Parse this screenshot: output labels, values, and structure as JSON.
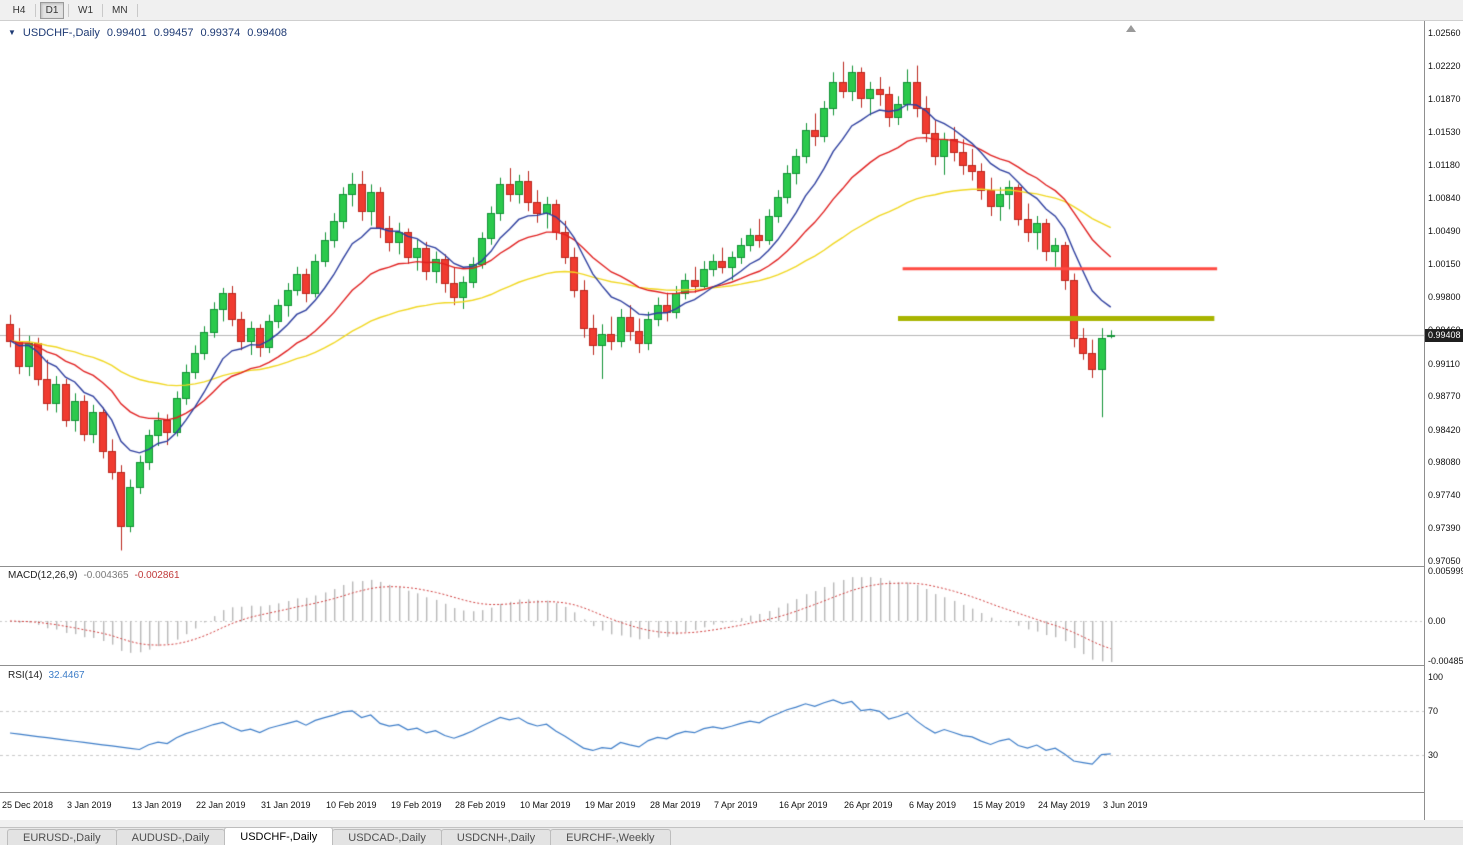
{
  "toolbar": {
    "timeframes": [
      {
        "label": "H4",
        "active": false
      },
      {
        "label": "D1",
        "active": true
      },
      {
        "label": "W1",
        "active": false
      },
      {
        "label": "MN",
        "active": false
      }
    ]
  },
  "chart": {
    "title": {
      "symbol": "USDCHF-,Daily",
      "open": "0.99401",
      "high": "0.99457",
      "low": "0.99374",
      "close": "0.99408"
    }
  },
  "chart_data": {
    "type": "candlestick",
    "symbol": "USDCHF",
    "timeframe": "Daily",
    "background": "#ffffff",
    "candle_colors": {
      "up": {
        "fill": "#2bc94c",
        "stroke": "#129336"
      },
      "down": {
        "fill": "#f03b30",
        "stroke": "#bb271e"
      }
    },
    "price_axis": {
      "min": 0.9705,
      "max": 1.0256,
      "labels": [
        "1.02560",
        "1.02220",
        "1.01870",
        "1.01530",
        "1.01180",
        "1.00840",
        "1.00490",
        "1.00150",
        "0.99800",
        "0.99460",
        "0.99110",
        "0.98770",
        "0.98420",
        "0.98080",
        "0.97740",
        "0.97390",
        "0.97050"
      ],
      "current_price": 0.99408,
      "current_price_label": "0.99408",
      "current_line_color": "#b6b6b6"
    },
    "x_labels": [
      {
        "i": 0,
        "text": "25 Dec 2018"
      },
      {
        "i": 7,
        "text": "3 Jan 2019"
      },
      {
        "i": 14,
        "text": "13 Jan 2019"
      },
      {
        "i": 21,
        "text": "22 Jan 2019"
      },
      {
        "i": 28,
        "text": "31 Jan 2019"
      },
      {
        "i": 35,
        "text": "10 Feb 2019"
      },
      {
        "i": 42,
        "text": "19 Feb 2019"
      },
      {
        "i": 49,
        "text": "28 Feb 2019"
      },
      {
        "i": 56,
        "text": "10 Mar 2019"
      },
      {
        "i": 63,
        "text": "19 Mar 2019"
      },
      {
        "i": 70,
        "text": "28 Mar 2019"
      },
      {
        "i": 77,
        "text": "7 Apr 2019"
      },
      {
        "i": 84,
        "text": "16 Apr 2019"
      },
      {
        "i": 91,
        "text": "26 Apr 2019"
      },
      {
        "i": 98,
        "text": "6 May 2019"
      },
      {
        "i": 105,
        "text": "15 May 2019"
      },
      {
        "i": 112,
        "text": "24 May 2019"
      },
      {
        "i": 119,
        "text": "3 Jun 2019"
      }
    ],
    "candles": [
      [
        0.9952,
        0.9962,
        0.9928,
        0.9935
      ],
      [
        0.9935,
        0.9948,
        0.99,
        0.9908
      ],
      [
        0.9908,
        0.994,
        0.9898,
        0.9932
      ],
      [
        0.9932,
        0.9938,
        0.9888,
        0.9895
      ],
      [
        0.9895,
        0.9915,
        0.9862,
        0.987
      ],
      [
        0.987,
        0.9898,
        0.986,
        0.989
      ],
      [
        0.989,
        0.9895,
        0.9845,
        0.9852
      ],
      [
        0.9852,
        0.988,
        0.984,
        0.9872
      ],
      [
        0.9872,
        0.9878,
        0.983,
        0.9838
      ],
      [
        0.9838,
        0.9868,
        0.9828,
        0.986
      ],
      [
        0.986,
        0.9865,
        0.9812,
        0.982
      ],
      [
        0.982,
        0.9832,
        0.979,
        0.9798
      ],
      [
        0.9798,
        0.9805,
        0.9716,
        0.9742
      ],
      [
        0.9742,
        0.979,
        0.9735,
        0.9782
      ],
      [
        0.9782,
        0.9815,
        0.9775,
        0.9808
      ],
      [
        0.9808,
        0.9842,
        0.98,
        0.9836
      ],
      [
        0.9836,
        0.986,
        0.9825,
        0.9852
      ],
      [
        0.9852,
        0.9858,
        0.9826,
        0.984
      ],
      [
        0.984,
        0.9882,
        0.9835,
        0.9875
      ],
      [
        0.9875,
        0.991,
        0.9868,
        0.9902
      ],
      [
        0.9902,
        0.993,
        0.9895,
        0.9922
      ],
      [
        0.9922,
        0.995,
        0.9915,
        0.9944
      ],
      [
        0.9944,
        0.9975,
        0.9938,
        0.9968
      ],
      [
        0.9968,
        0.999,
        0.9955,
        0.9985
      ],
      [
        0.9985,
        0.9992,
        0.995,
        0.9958
      ],
      [
        0.9958,
        0.9965,
        0.9925,
        0.9935
      ],
      [
        0.9935,
        0.9955,
        0.992,
        0.9948
      ],
      [
        0.9948,
        0.9952,
        0.9918,
        0.9928
      ],
      [
        0.9928,
        0.9962,
        0.9922,
        0.9955
      ],
      [
        0.9955,
        0.9978,
        0.9948,
        0.9972
      ],
      [
        0.9972,
        0.9995,
        0.996,
        0.9988
      ],
      [
        0.9988,
        1.0012,
        0.9982,
        1.0005
      ],
      [
        1.0005,
        1.001,
        0.9975,
        0.9985
      ],
      [
        0.9985,
        1.0025,
        0.998,
        1.0018
      ],
      [
        1.0018,
        1.0048,
        1.0012,
        1.004
      ],
      [
        1.004,
        1.0068,
        1.0032,
        1.006
      ],
      [
        1.006,
        1.0095,
        1.0052,
        1.0088
      ],
      [
        1.0088,
        1.011,
        1.0075,
        1.0098
      ],
      [
        1.0098,
        1.0112,
        1.006,
        1.007
      ],
      [
        1.007,
        1.0098,
        1.0055,
        1.009
      ],
      [
        1.009,
        1.0095,
        1.0042,
        1.0052
      ],
      [
        1.0052,
        1.0065,
        1.0028,
        1.0038
      ],
      [
        1.0038,
        1.0058,
        1.0025,
        1.0048
      ],
      [
        1.0048,
        1.0052,
        1.0015,
        1.0022
      ],
      [
        1.0022,
        1.004,
        1.0008,
        1.0032
      ],
      [
        1.0032,
        1.0038,
        0.9998,
        1.0008
      ],
      [
        1.0008,
        1.0028,
        0.9995,
        1.002
      ],
      [
        1.002,
        1.0025,
        0.9985,
        0.9995
      ],
      [
        0.9995,
        1.0012,
        0.9972,
        0.998
      ],
      [
        0.998,
        1.0002,
        0.9968,
        0.9996
      ],
      [
        0.9996,
        1.0022,
        0.999,
        1.0015
      ],
      [
        1.0015,
        1.0048,
        1.001,
        1.0042
      ],
      [
        1.0042,
        1.0075,
        1.0035,
        1.0068
      ],
      [
        1.0068,
        1.0105,
        1.006,
        1.0098
      ],
      [
        1.0098,
        1.0115,
        1.008,
        1.0088
      ],
      [
        1.0088,
        1.0108,
        1.0078,
        1.0102
      ],
      [
        1.0102,
        1.0112,
        1.007,
        1.008
      ],
      [
        1.008,
        1.0092,
        1.0058,
        1.0068
      ],
      [
        1.0068,
        1.0085,
        1.0052,
        1.0078
      ],
      [
        1.0078,
        1.0082,
        1.004,
        1.0048
      ],
      [
        1.0048,
        1.006,
        1.0015,
        1.0022
      ],
      [
        1.0022,
        1.0032,
        0.998,
        0.9988
      ],
      [
        0.9988,
        0.9998,
        0.9938,
        0.9948
      ],
      [
        0.9948,
        0.9962,
        0.992,
        0.993
      ],
      [
        0.993,
        0.9952,
        0.9895,
        0.9942
      ],
      [
        0.9942,
        0.996,
        0.9925,
        0.9935
      ],
      [
        0.9935,
        0.9968,
        0.9928,
        0.996
      ],
      [
        0.996,
        0.9972,
        0.9935,
        0.9945
      ],
      [
        0.9945,
        0.9958,
        0.9922,
        0.9932
      ],
      [
        0.9932,
        0.9965,
        0.9925,
        0.9958
      ],
      [
        0.9958,
        0.998,
        0.995,
        0.9972
      ],
      [
        0.9972,
        0.9985,
        0.9955,
        0.9965
      ],
      [
        0.9965,
        0.9992,
        0.9958,
        0.9985
      ],
      [
        0.9985,
        1.0005,
        0.9978,
        0.9998
      ],
      [
        0.9998,
        1.0012,
        0.9985,
        0.9992
      ],
      [
        0.9992,
        1.0018,
        0.9988,
        1.001
      ],
      [
        1.001,
        1.0025,
        1.0002,
        1.0018
      ],
      [
        1.0018,
        1.0032,
        1.0005,
        1.0012
      ],
      [
        1.0012,
        1.0028,
        0.9998,
        1.0022
      ],
      [
        1.0022,
        1.0042,
        1.0015,
        1.0035
      ],
      [
        1.0035,
        1.0052,
        1.0028,
        1.0045
      ],
      [
        1.0045,
        1.0062,
        1.0032,
        1.004
      ],
      [
        1.004,
        1.0072,
        1.0035,
        1.0065
      ],
      [
        1.0065,
        1.0092,
        1.0058,
        1.0085
      ],
      [
        1.0085,
        1.0118,
        1.0078,
        1.011
      ],
      [
        1.011,
        1.0135,
        1.0098,
        1.0128
      ],
      [
        1.0128,
        1.0162,
        1.012,
        1.0155
      ],
      [
        1.0155,
        1.0172,
        1.0138,
        1.0148
      ],
      [
        1.0148,
        1.0185,
        1.0142,
        1.0178
      ],
      [
        1.0178,
        1.0215,
        1.017,
        1.0205
      ],
      [
        1.0205,
        1.0226,
        1.0188,
        1.0195
      ],
      [
        1.0195,
        1.0222,
        1.0185,
        1.0215
      ],
      [
        1.0215,
        1.022,
        1.0178,
        1.0188
      ],
      [
        1.0188,
        1.0205,
        1.017,
        1.0198
      ],
      [
        1.0198,
        1.021,
        1.018,
        1.0192
      ],
      [
        1.0192,
        1.02,
        1.0158,
        1.0168
      ],
      [
        1.0168,
        1.019,
        1.016,
        1.0182
      ],
      [
        1.0182,
        1.0218,
        1.0175,
        1.0205
      ],
      [
        1.0205,
        1.0222,
        1.0168,
        1.0178
      ],
      [
        1.0178,
        1.019,
        1.0142,
        1.0152
      ],
      [
        1.0152,
        1.0165,
        1.0118,
        1.0128
      ],
      [
        1.0128,
        1.0152,
        1.0108,
        1.0145
      ],
      [
        1.0145,
        1.0158,
        1.0122,
        1.0132
      ],
      [
        1.0132,
        1.0145,
        1.0108,
        1.0118
      ],
      [
        1.0118,
        1.0135,
        1.0102,
        1.0112
      ],
      [
        1.0112,
        1.012,
        1.0082,
        1.0092
      ],
      [
        1.0092,
        1.0105,
        1.0065,
        1.0075
      ],
      [
        1.0075,
        1.0095,
        1.006,
        1.0088
      ],
      [
        1.0088,
        1.0102,
        1.0072,
        1.0095
      ],
      [
        1.0095,
        1.0098,
        1.0055,
        1.0062
      ],
      [
        1.0062,
        1.0078,
        1.0038,
        1.0048
      ],
      [
        1.0048,
        1.0065,
        1.003,
        1.0058
      ],
      [
        1.0058,
        1.0062,
        1.0018,
        1.0028
      ],
      [
        1.0028,
        1.0042,
        1.0012,
        1.0035
      ],
      [
        1.0035,
        1.0038,
        0.9988,
        0.9998
      ],
      [
        0.9998,
        1.0005,
        0.9928,
        0.9938
      ],
      [
        0.9938,
        0.9948,
        0.9915,
        0.9922
      ],
      [
        0.9922,
        0.9936,
        0.9896,
        0.9905
      ],
      [
        0.9905,
        0.9948,
        0.9855,
        0.9938
      ],
      [
        0.99401,
        0.99457,
        0.99374,
        0.99408
      ]
    ],
    "moving_averages": [
      {
        "period": 50,
        "color": "#f0d722"
      },
      {
        "period": 20,
        "color": "#e02020"
      },
      {
        "period": 9,
        "color": "#2e3f9f"
      }
    ],
    "horizontal_lines": [
      {
        "price": 1.001,
        "color": "#ff4a42",
        "width": 3,
        "from_i": 96.5,
        "to_i": 130.5
      },
      {
        "price": 0.9958,
        "color": "#a8b400",
        "width": 5,
        "from_i": 96,
        "to_i": 130.2
      }
    ],
    "macd": {
      "params": "MACD(12,26,9)",
      "fast": 12,
      "slow": 26,
      "signal": 9,
      "value": "-0.004365",
      "signal_value": "-0.002861",
      "axis_labels": [
        {
          "text": "0.0059999",
          "value": 0.006
        },
        {
          "text": "0.00",
          "value": 0
        },
        {
          "text": "-0.0048588",
          "value": -0.0048
        }
      ],
      "histogram_color": "#b9b9b9",
      "signal_color": "#d04040"
    },
    "rsi": {
      "params": "RSI(14)",
      "period": 14,
      "value": "32.4467",
      "levels": [
        70,
        30
      ],
      "axis_labels": [
        {
          "text": "100",
          "value": 100
        },
        {
          "text": "70",
          "value": 70
        },
        {
          "text": "30",
          "value": 30
        }
      ],
      "color": "#3d7dc8"
    }
  },
  "tab_bar": {
    "tabs": [
      {
        "label": "EURUSD-,Daily",
        "active": false
      },
      {
        "label": "AUDUSD-,Daily",
        "active": false
      },
      {
        "label": "USDCHF-,Daily",
        "active": true
      },
      {
        "label": "USDCAD-,Daily",
        "active": false
      },
      {
        "label": "USDCNH-,Daily",
        "active": false
      },
      {
        "label": "EURCHF-,Weekly",
        "active": false
      }
    ]
  }
}
